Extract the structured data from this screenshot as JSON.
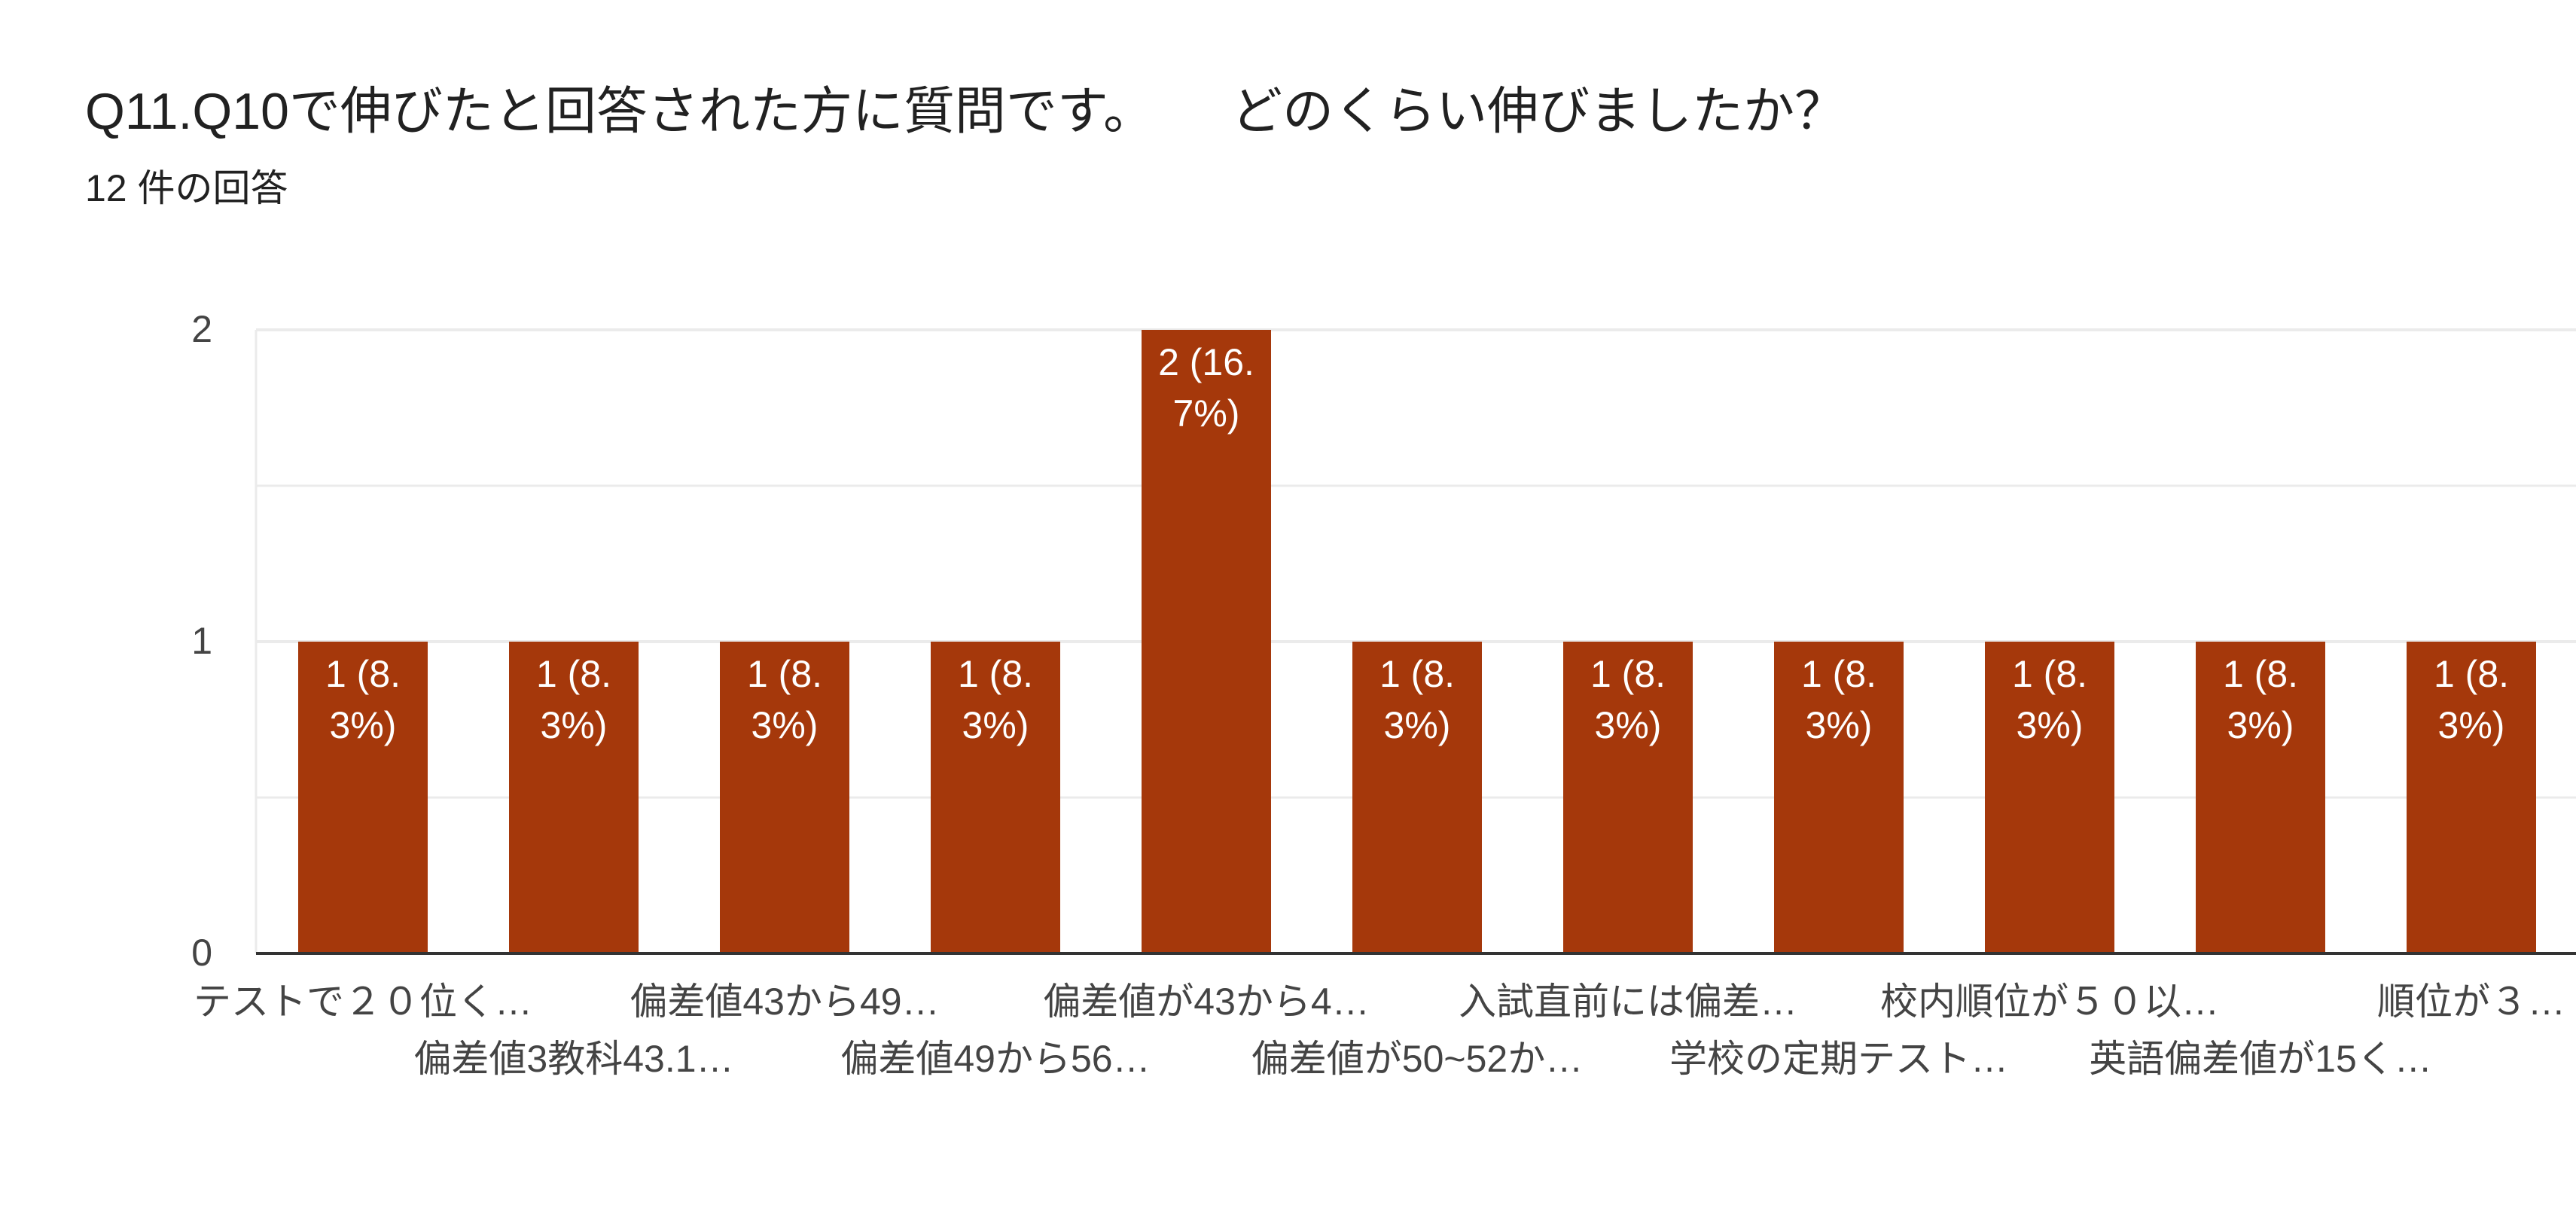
{
  "title": "Q11.Q10で伸びたと回答された方に質問です。　　どのくらい伸びましたか？",
  "subtitle": "12 件の回答",
  "colors": {
    "bar": "#a5380b",
    "axis": "#333333",
    "grid": "#ebebeb",
    "bar_label": "#ffffff",
    "tick": "#444444"
  },
  "chart_data": {
    "type": "bar",
    "title": "Q11.Q10で伸びたと回答された方に質問です。　　どのくらい伸びましたか？",
    "subtitle": "12 件の回答",
    "categories": [
      "テストで２０位く…",
      "偏差値3教科43.1…",
      "偏差値43から49…",
      "偏差値49から56…",
      "偏差値が43から4…",
      "偏差値が50~52か…",
      "入試直前には偏差…",
      "学校の定期テスト…",
      "校内順位が５０以…",
      "英語偏差値が15く…",
      "順位が３…"
    ],
    "values": [
      1,
      1,
      1,
      1,
      2,
      1,
      1,
      1,
      1,
      1,
      1
    ],
    "data_labels": [
      [
        "1 (8.",
        "3%)"
      ],
      [
        "1 (8.",
        "3%)"
      ],
      [
        "1 (8.",
        "3%)"
      ],
      [
        "1 (8.",
        "3%)"
      ],
      [
        "2 (16.",
        "7%)"
      ],
      [
        "1 (8.",
        "3%)"
      ],
      [
        "1 (8.",
        "3%)"
      ],
      [
        "1 (8.",
        "3%)"
      ],
      [
        "1 (8.",
        "3%)"
      ],
      [
        "1 (8.",
        "3%)"
      ],
      [
        "1 (8.",
        "3%)"
      ]
    ],
    "ylim": [
      0,
      2
    ],
    "yticks": [
      "0",
      "1",
      "2"
    ],
    "minor_gridlines": true,
    "grid": true,
    "xlabel": "",
    "ylabel": ""
  }
}
